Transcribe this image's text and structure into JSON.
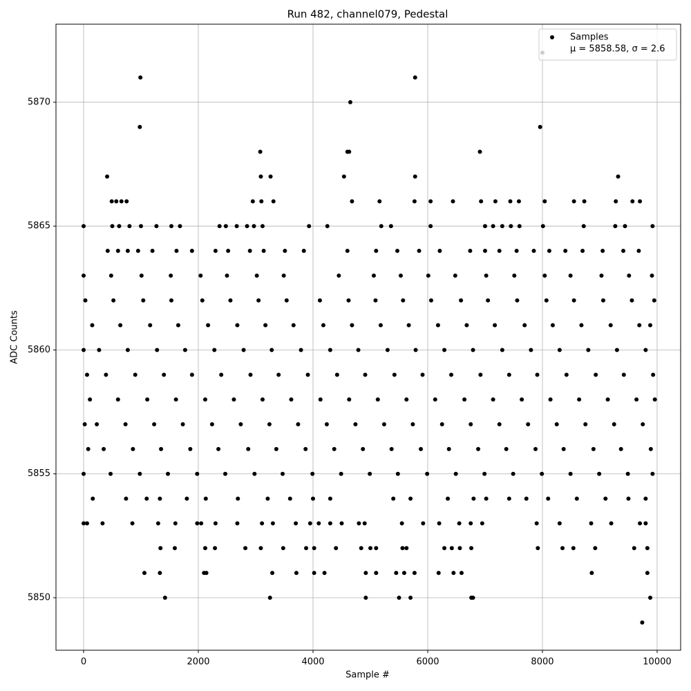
{
  "chart_data": {
    "type": "scatter",
    "title": "Run 482, channel079, Pedestal",
    "xlabel": "Sample #",
    "ylabel": "ADC Counts",
    "xlim": [
      -482,
      10410
    ],
    "ylim": [
      5847.88,
      5873.15
    ],
    "xticks": [
      0,
      2000,
      4000,
      6000,
      8000,
      10000
    ],
    "yticks": [
      5850,
      5855,
      5860,
      5865,
      5870
    ],
    "grid": true,
    "legend": "upper right",
    "legend_text": "μ = 5858.58, σ = 2.6",
    "series": [
      {
        "name": "Samples",
        "color": "#000000",
        "x": [
          8000,
          990,
          5780,
          4650,
          980,
          7960,
          3080,
          4600,
          4630,
          6910,
          410,
          3090,
          3260,
          4540,
          5780,
          9320,
          490,
          570,
          660,
          750,
          2950,
          3100,
          3310,
          4680,
          5160,
          5770,
          6050,
          6440,
          6930,
          7180,
          7440,
          7590,
          8040,
          8550,
          8730,
          9280,
          9570,
          9700,
          0,
          500,
          620,
          800,
          1000,
          1270,
          1530,
          1680,
          2370,
          2480,
          2670,
          2850,
          2970,
          3120,
          3930,
          4250,
          5190,
          5360,
          6050,
          7000,
          7140,
          7300,
          7450,
          7600,
          8010,
          8720,
          9270,
          9440,
          9920,
          420,
          600,
          770,
          950,
          1200,
          1620,
          1890,
          2300,
          2520,
          2900,
          3140,
          3510,
          3840,
          4600,
          5100,
          5470,
          5850,
          6210,
          6740,
          7000,
          7250,
          7550,
          7850,
          8120,
          8400,
          8700,
          9050,
          9410,
          9680,
          0,
          480,
          1010,
          1520,
          2040,
          2500,
          3020,
          3490,
          4450,
          5060,
          5530,
          6010,
          6480,
          7020,
          7510,
          8040,
          8490,
          9030,
          9510,
          9910,
          30,
          520,
          1040,
          1530,
          2070,
          2560,
          3050,
          3540,
          4120,
          4620,
          5090,
          5570,
          6060,
          6580,
          7050,
          7560,
          8070,
          8550,
          9060,
          9560,
          9950,
          150,
          640,
          1160,
          1650,
          2170,
          2680,
          3170,
          3660,
          4180,
          4680,
          5180,
          5670,
          6180,
          6680,
          7170,
          7690,
          8180,
          8680,
          9190,
          9690,
          9880,
          270,
          770,
          1280,
          1770,
          2280,
          2790,
          3280,
          3790,
          4300,
          4790,
          5300,
          5790,
          6290,
          6790,
          7300,
          7800,
          8300,
          8800,
          9300,
          9800,
          0,
          390,
          900,
          1400,
          1890,
          2400,
          2910,
          3400,
          3910,
          4420,
          4910,
          5420,
          5910,
          6410,
          6920,
          7420,
          7910,
          8420,
          8930,
          9420,
          9930,
          60,
          110,
          600,
          1110,
          1610,
          2120,
          2620,
          3120,
          3620,
          4130,
          4630,
          5130,
          5630,
          6130,
          6640,
          7140,
          7640,
          8140,
          8640,
          9140,
          9640,
          9960,
          230,
          730,
          1230,
          1730,
          2240,
          2740,
          3240,
          3740,
          4240,
          4740,
          5240,
          5740,
          6250,
          6750,
          7250,
          7750,
          8250,
          8750,
          9250,
          9750,
          20,
          350,
          860,
          1350,
          1860,
          2350,
          2870,
          3360,
          3870,
          4370,
          4870,
          5370,
          5880,
          6370,
          6880,
          7370,
          7880,
          8370,
          8890,
          9370,
          9890,
          80,
          0,
          470,
          980,
          1470,
          1980,
          2470,
          2980,
          3470,
          3990,
          4490,
          4990,
          5480,
          5990,
          6490,
          6990,
          7490,
          7990,
          8490,
          8990,
          9490,
          9920,
          160,
          740,
          1100,
          1330,
          1800,
          2130,
          2690,
          3210,
          3600,
          4000,
          4300,
          5400,
          5700,
          6350,
          6800,
          7020,
          7420,
          7720,
          8100,
          8600,
          9100,
          9500,
          9800,
          0,
          60,
          330,
          850,
          1300,
          1600,
          1980,
          2050,
          2300,
          2680,
          3110,
          3300,
          3700,
          3950,
          4100,
          4300,
          4500,
          4800,
          4900,
          5550,
          5920,
          6200,
          6550,
          6750,
          6950,
          7900,
          8300,
          8850,
          9200,
          9700,
          9800,
          1340,
          1590,
          2120,
          2290,
          2820,
          3090,
          3480,
          3880,
          4020,
          4400,
          4840,
          5000,
          5100,
          5560,
          5630,
          6290,
          6420,
          6560,
          6760,
          7920,
          8350,
          8540,
          8920,
          9600,
          9830,
          1060,
          1330,
          2100,
          2140,
          3290,
          3710,
          4020,
          4200,
          4920,
          5100,
          5450,
          5590,
          5770,
          6190,
          6450,
          6590,
          8860,
          9830,
          1420,
          3250,
          4920,
          5500,
          5700,
          6760,
          6790,
          9880,
          9740
        ],
        "values": [
          5872,
          5871,
          5871,
          5870,
          5869,
          5869,
          5868,
          5868,
          5868,
          5868,
          5867,
          5867,
          5867,
          5867,
          5867,
          5867,
          5866,
          5866,
          5866,
          5866,
          5866,
          5866,
          5866,
          5866,
          5866,
          5866,
          5866,
          5866,
          5866,
          5866,
          5866,
          5866,
          5866,
          5866,
          5866,
          5866,
          5866,
          5866,
          5865,
          5865,
          5865,
          5865,
          5865,
          5865,
          5865,
          5865,
          5865,
          5865,
          5865,
          5865,
          5865,
          5865,
          5865,
          5865,
          5865,
          5865,
          5865,
          5865,
          5865,
          5865,
          5865,
          5865,
          5865,
          5865,
          5865,
          5865,
          5865,
          5864,
          5864,
          5864,
          5864,
          5864,
          5864,
          5864,
          5864,
          5864,
          5864,
          5864,
          5864,
          5864,
          5864,
          5864,
          5864,
          5864,
          5864,
          5864,
          5864,
          5864,
          5864,
          5864,
          5864,
          5864,
          5864,
          5864,
          5864,
          5864,
          5863,
          5863,
          5863,
          5863,
          5863,
          5863,
          5863,
          5863,
          5863,
          5863,
          5863,
          5863,
          5863,
          5863,
          5863,
          5863,
          5863,
          5863,
          5863,
          5863,
          5862,
          5862,
          5862,
          5862,
          5862,
          5862,
          5862,
          5862,
          5862,
          5862,
          5862,
          5862,
          5862,
          5862,
          5862,
          5862,
          5862,
          5862,
          5862,
          5862,
          5862,
          5861,
          5861,
          5861,
          5861,
          5861,
          5861,
          5861,
          5861,
          5861,
          5861,
          5861,
          5861,
          5861,
          5861,
          5861,
          5861,
          5861,
          5861,
          5861,
          5861,
          5861,
          5860,
          5860,
          5860,
          5860,
          5860,
          5860,
          5860,
          5860,
          5860,
          5860,
          5860,
          5860,
          5860,
          5860,
          5860,
          5860,
          5860,
          5860,
          5860,
          5860,
          5860,
          5859,
          5859,
          5859,
          5859,
          5859,
          5859,
          5859,
          5859,
          5859,
          5859,
          5859,
          5859,
          5859,
          5859,
          5859,
          5859,
          5859,
          5859,
          5859,
          5859,
          5859,
          5858,
          5858,
          5858,
          5858,
          5858,
          5858,
          5858,
          5858,
          5858,
          5858,
          5858,
          5858,
          5858,
          5858,
          5858,
          5858,
          5858,
          5858,
          5858,
          5858,
          5858,
          5857,
          5857,
          5857,
          5857,
          5857,
          5857,
          5857,
          5857,
          5857,
          5857,
          5857,
          5857,
          5857,
          5857,
          5857,
          5857,
          5857,
          5857,
          5857,
          5857,
          5857,
          5856,
          5856,
          5856,
          5856,
          5856,
          5856,
          5856,
          5856,
          5856,
          5856,
          5856,
          5856,
          5856,
          5856,
          5856,
          5856,
          5856,
          5856,
          5856,
          5856,
          5856,
          5855,
          5855,
          5855,
          5855,
          5855,
          5855,
          5855,
          5855,
          5855,
          5855,
          5855,
          5855,
          5855,
          5855,
          5855,
          5855,
          5855,
          5855,
          5855,
          5855,
          5855,
          5854,
          5854,
          5854,
          5854,
          5854,
          5854,
          5854,
          5854,
          5854,
          5854,
          5854,
          5854,
          5854,
          5854,
          5854,
          5854,
          5854,
          5854,
          5854,
          5854,
          5854,
          5854,
          5854,
          5853,
          5853,
          5853,
          5853,
          5853,
          5853,
          5853,
          5853,
          5853,
          5853,
          5853,
          5853,
          5853,
          5853,
          5853,
          5853,
          5853,
          5853,
          5853,
          5853,
          5853,
          5853,
          5853,
          5853,
          5853,
          5853,
          5853,
          5853,
          5853,
          5853,
          5853,
          5852,
          5852,
          5852,
          5852,
          5852,
          5852,
          5852,
          5852,
          5852,
          5852,
          5852,
          5852,
          5852,
          5852,
          5852,
          5852,
          5852,
          5852,
          5852,
          5852,
          5852,
          5852,
          5852,
          5852,
          5852,
          5851,
          5851,
          5851,
          5851,
          5851,
          5851,
          5851,
          5851,
          5851,
          5851,
          5851,
          5851,
          5851,
          5851,
          5851,
          5851,
          5851,
          5851,
          5850,
          5850,
          5850,
          5850,
          5850,
          5850,
          5850,
          5850,
          5849
        ]
      }
    ]
  }
}
